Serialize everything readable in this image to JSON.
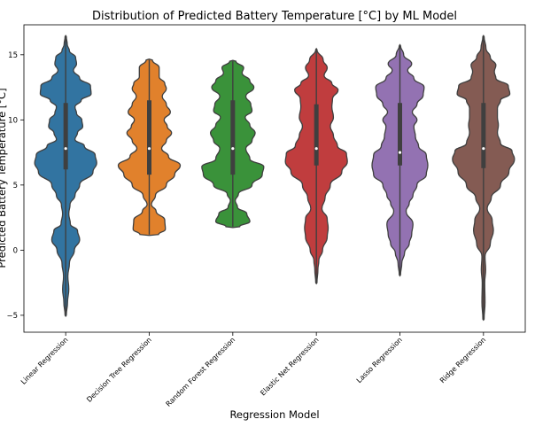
{
  "chart_data": {
    "type": "violin",
    "title": "Distribution of Predicted Battery Temperature [°C] by ML Model",
    "xlabel": "Regression Model",
    "ylabel": "Predicted Battery Temperature [°C]",
    "ylim": [
      -6.3,
      17.3
    ],
    "yticks": [
      -5,
      0,
      5,
      10,
      15
    ],
    "grid": false,
    "categories": [
      "Linear Regression",
      "Decision Tree Regression",
      "Random Forest Regression",
      "Elastic Net Regression",
      "Lasso Regression",
      "Ridge Regression"
    ],
    "series": [
      {
        "color": "#3274a1",
        "min": -4.9,
        "q1": 6.2,
        "median": 7.8,
        "q3": 11.3,
        "max": 16.4,
        "density_y": [
          -5.0,
          -4.0,
          -3.0,
          -2.0,
          -1.0,
          0.0,
          0.8,
          1.5,
          2.0,
          2.8,
          3.5,
          4.2,
          5.0,
          6.0,
          6.7,
          7.3,
          8.0,
          8.5,
          9.0,
          9.5,
          10.0,
          10.5,
          11.0,
          11.5,
          12.0,
          12.6,
          13.2,
          13.8,
          14.3,
          14.8,
          15.3,
          15.8,
          16.4
        ],
        "density_w": [
          0.02,
          0.06,
          0.1,
          0.07,
          0.12,
          0.28,
          0.45,
          0.38,
          0.15,
          0.1,
          0.14,
          0.3,
          0.45,
          0.88,
          1.0,
          0.95,
          0.6,
          0.3,
          0.38,
          0.55,
          0.52,
          0.35,
          0.3,
          0.5,
          0.82,
          0.8,
          0.45,
          0.25,
          0.35,
          0.32,
          0.12,
          0.05,
          0.02
        ]
      },
      {
        "color": "#e1812c",
        "min": 1.2,
        "q1": 5.8,
        "median": 7.8,
        "q3": 11.5,
        "max": 14.6,
        "density_y": [
          1.2,
          1.6,
          2.3,
          3.0,
          3.5,
          4.2,
          5.0,
          5.8,
          6.5,
          7.2,
          7.8,
          8.4,
          9.0,
          9.5,
          10.0,
          10.6,
          11.2,
          11.8,
          12.4,
          12.8,
          13.3,
          14.0,
          14.6
        ],
        "density_w": [
          0.3,
          0.52,
          0.5,
          0.22,
          0.07,
          0.2,
          0.55,
          0.82,
          1.0,
          0.62,
          0.4,
          0.55,
          0.72,
          0.58,
          0.48,
          0.68,
          0.55,
          0.42,
          0.55,
          0.5,
          0.32,
          0.32,
          0.1
        ]
      },
      {
        "color": "#3a923a",
        "min": 1.8,
        "q1": 5.8,
        "median": 7.8,
        "q3": 11.5,
        "max": 14.5,
        "density_y": [
          1.8,
          2.2,
          2.8,
          3.3,
          3.8,
          4.3,
          5.0,
          5.8,
          6.4,
          7.0,
          7.8,
          8.4,
          9.0,
          9.6,
          10.2,
          10.7,
          11.2,
          11.8,
          12.5,
          13.0,
          13.6,
          14.0,
          14.5
        ],
        "density_w": [
          0.22,
          0.55,
          0.45,
          0.15,
          0.08,
          0.18,
          0.62,
          0.95,
          1.0,
          0.55,
          0.42,
          0.62,
          0.72,
          0.55,
          0.4,
          0.62,
          0.58,
          0.42,
          0.68,
          0.55,
          0.3,
          0.35,
          0.1
        ]
      },
      {
        "color": "#c03d3e",
        "min": -2.5,
        "q1": 6.5,
        "median": 7.8,
        "q3": 11.2,
        "max": 15.4,
        "density_y": [
          -2.5,
          -1.5,
          -0.8,
          0.0,
          1.0,
          1.7,
          2.4,
          3.2,
          4.0,
          5.0,
          6.0,
          6.8,
          7.4,
          8.0,
          8.8,
          9.5,
          10.2,
          11.0,
          11.6,
          12.3,
          12.8,
          13.4,
          14.0,
          14.6,
          15.4
        ],
        "density_w": [
          0.02,
          0.05,
          0.08,
          0.2,
          0.35,
          0.38,
          0.35,
          0.18,
          0.28,
          0.45,
          0.82,
          1.0,
          0.97,
          0.68,
          0.55,
          0.45,
          0.55,
          0.5,
          0.52,
          0.7,
          0.5,
          0.25,
          0.35,
          0.22,
          0.02
        ]
      },
      {
        "color": "#9372b2",
        "min": -1.9,
        "q1": 6.5,
        "median": 7.5,
        "q3": 11.3,
        "max": 15.7,
        "density_y": [
          -1.9,
          -1.0,
          -0.2,
          0.5,
          1.2,
          2.0,
          3.0,
          3.6,
          4.2,
          5.0,
          5.8,
          6.5,
          7.3,
          8.0,
          8.7,
          9.5,
          10.0,
          10.6,
          11.2,
          11.9,
          12.5,
          13.2,
          13.8,
          14.3,
          15.0,
          15.7
        ],
        "density_w": [
          0.02,
          0.06,
          0.15,
          0.3,
          0.38,
          0.42,
          0.2,
          0.3,
          0.42,
          0.55,
          0.85,
          0.9,
          0.85,
          0.6,
          0.5,
          0.45,
          0.55,
          0.4,
          0.55,
          0.75,
          0.78,
          0.45,
          0.25,
          0.38,
          0.12,
          0.02
        ]
      },
      {
        "color": "#845b53",
        "min": -5.3,
        "q1": 6.3,
        "median": 7.8,
        "q3": 11.3,
        "max": 16.4,
        "density_y": [
          -5.3,
          -4.0,
          -2.5,
          -1.5,
          -0.5,
          0.5,
          1.5,
          2.3,
          3.2,
          4.0,
          5.0,
          6.0,
          7.0,
          7.6,
          8.2,
          9.0,
          9.6,
          10.2,
          10.9,
          11.5,
          12.0,
          12.6,
          13.2,
          13.7,
          14.2,
          14.8,
          15.5,
          16.4
        ],
        "density_w": [
          0.02,
          0.05,
          0.04,
          0.07,
          0.05,
          0.22,
          0.32,
          0.28,
          0.12,
          0.25,
          0.55,
          0.82,
          1.0,
          0.92,
          0.55,
          0.45,
          0.48,
          0.45,
          0.45,
          0.55,
          0.85,
          0.8,
          0.4,
          0.35,
          0.4,
          0.22,
          0.08,
          0.02
        ]
      }
    ]
  }
}
